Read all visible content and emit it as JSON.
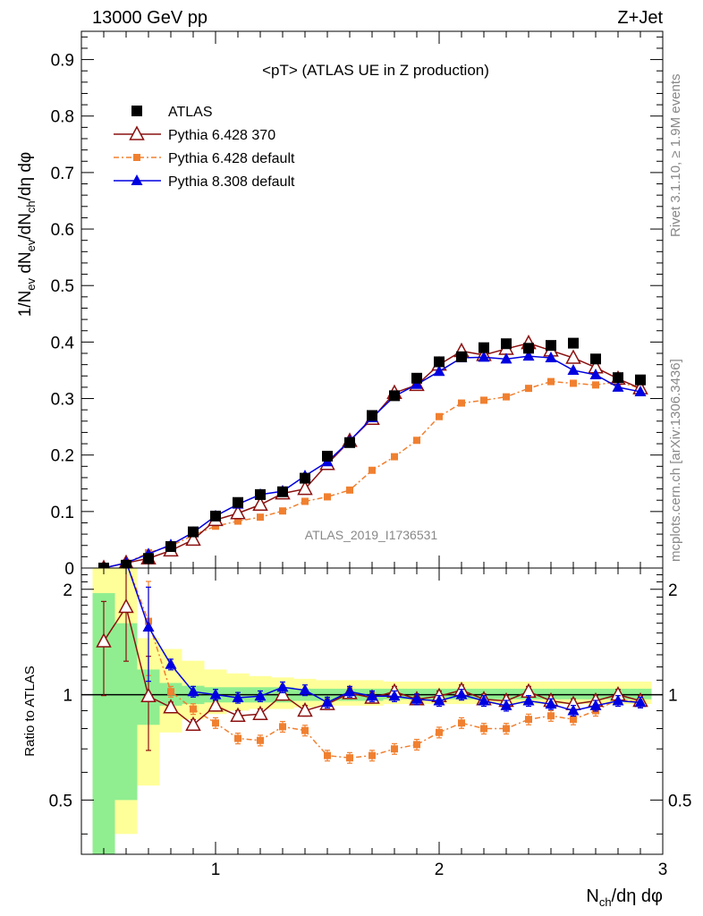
{
  "header": {
    "left": "13000 GeV pp",
    "right": "Z+Jet"
  },
  "plot_title": "<pT> (ATLAS UE in Z production)",
  "analysis_label": "ATLAS_2019_I1736531",
  "side_right_top": "Rivet 3.1.10, ≥ 1.9M events",
  "side_right_bottom": "mcplots.cern.ch [arXiv:1306.3436]",
  "colors": {
    "atlas": "#000000",
    "p6_370": "#8b1010",
    "p6_default": "#f08030",
    "p8_default": "#0000e0",
    "band_green": "#90ee90",
    "band_yellow": "#ffff99"
  },
  "chart_data": [
    {
      "type": "line",
      "title": "<pT> (ATLAS UE in Z production)",
      "ylabel": "1/N_ev dN_ev/dN_ch/dη dφ",
      "xlim": [
        0.4,
        3.0
      ],
      "ylim": [
        0,
        0.95
      ],
      "y_ticks": [
        "0",
        "0.1",
        "0.2",
        "0.3",
        "0.4",
        "0.5",
        "0.6",
        "0.7",
        "0.8",
        "0.9"
      ],
      "legend_position": "top-left",
      "series": [
        {
          "name": "ATLAS",
          "x": [
            0.5,
            0.6,
            0.7,
            0.8,
            0.9,
            1.0,
            1.1,
            1.2,
            1.3,
            1.4,
            1.5,
            1.6,
            1.7,
            1.8,
            1.9,
            2.0,
            2.1,
            2.2,
            2.3,
            2.4,
            2.5,
            2.6,
            2.7,
            2.8,
            2.9
          ],
          "y": [
            0.0,
            0.005,
            0.017,
            0.038,
            0.064,
            0.092,
            0.116,
            0.13,
            0.135,
            0.159,
            0.198,
            0.222,
            0.27,
            0.305,
            0.336,
            0.365,
            0.374,
            0.39,
            0.397,
            0.389,
            0.394,
            0.398,
            0.37,
            0.337,
            0.333
          ]
        },
        {
          "name": "Pythia 6.428 370",
          "x": [
            0.5,
            0.6,
            0.7,
            0.8,
            0.9,
            1.0,
            1.1,
            1.2,
            1.3,
            1.4,
            1.5,
            1.6,
            1.7,
            1.8,
            1.9,
            2.0,
            2.1,
            2.2,
            2.3,
            2.4,
            2.5,
            2.6,
            2.7,
            2.8,
            2.9
          ],
          "y": [
            0.0,
            0.009,
            0.017,
            0.031,
            0.05,
            0.085,
            0.097,
            0.112,
            0.132,
            0.14,
            0.184,
            0.225,
            0.264,
            0.31,
            0.324,
            0.36,
            0.384,
            0.377,
            0.388,
            0.398,
            0.385,
            0.372,
            0.355,
            0.335,
            0.318
          ]
        },
        {
          "name": "Pythia 6.428 default",
          "x": [
            0.5,
            0.6,
            0.7,
            0.8,
            0.9,
            1.0,
            1.1,
            1.2,
            1.3,
            1.4,
            1.5,
            1.6,
            1.7,
            1.8,
            1.9,
            2.0,
            2.1,
            2.2,
            2.3,
            2.4,
            2.5,
            2.6,
            2.7,
            2.8,
            2.9
          ],
          "y": [
            0.0,
            0.009,
            0.027,
            0.039,
            0.058,
            0.074,
            0.083,
            0.09,
            0.101,
            0.118,
            0.126,
            0.138,
            0.173,
            0.197,
            0.226,
            0.268,
            0.292,
            0.297,
            0.303,
            0.318,
            0.33,
            0.327,
            0.324,
            0.33,
            0.318
          ]
        },
        {
          "name": "Pythia 8.308 default",
          "x": [
            0.5,
            0.6,
            0.7,
            0.8,
            0.9,
            1.0,
            1.1,
            1.2,
            1.3,
            1.4,
            1.5,
            1.6,
            1.7,
            1.8,
            1.9,
            2.0,
            2.1,
            2.2,
            2.3,
            2.4,
            2.5,
            2.6,
            2.7,
            2.8,
            2.9
          ],
          "y": [
            0.0,
            0.009,
            0.025,
            0.041,
            0.063,
            0.092,
            0.113,
            0.13,
            0.136,
            0.163,
            0.188,
            0.225,
            0.266,
            0.304,
            0.325,
            0.348,
            0.372,
            0.373,
            0.37,
            0.375,
            0.372,
            0.35,
            0.342,
            0.32,
            0.312
          ]
        }
      ]
    },
    {
      "type": "line",
      "ylabel": "Ratio to ATLAS",
      "xlabel": "N_ch/dη dφ",
      "xlim": [
        0.4,
        3.0
      ],
      "ylim": [
        0.35,
        2.3
      ],
      "y_scale": "log",
      "x_ticks": [
        "1",
        "2",
        "3"
      ],
      "y_ticks": [
        "0.5",
        "1",
        "2"
      ],
      "series": [
        {
          "name": "Pythia 6.428 370",
          "x": [
            0.5,
            0.6,
            0.7,
            0.8,
            0.9,
            1.0,
            1.1,
            1.2,
            1.3,
            1.4,
            1.5,
            1.6,
            1.7,
            1.8,
            1.9,
            2.0,
            2.1,
            2.2,
            2.3,
            2.4,
            2.5,
            2.6,
            2.7,
            2.8,
            2.9
          ],
          "y": [
            1.42,
            1.78,
            0.99,
            0.92,
            0.82,
            0.93,
            0.87,
            0.88,
            1.0,
            0.9,
            0.94,
            1.01,
            0.98,
            1.02,
            0.97,
            0.99,
            1.03,
            0.97,
            0.96,
            1.02,
            0.96,
            0.94,
            0.96,
            1.0,
            0.96
          ]
        },
        {
          "name": "Pythia 6.428 default",
          "x": [
            0.5,
            0.6,
            0.7,
            0.8,
            0.9,
            1.0,
            1.1,
            1.2,
            1.3,
            1.4,
            1.5,
            1.6,
            1.7,
            1.8,
            1.9,
            2.0,
            2.1,
            2.2,
            2.3,
            2.4,
            2.5,
            2.6,
            2.7,
            2.8,
            2.9
          ],
          "y": [
            2.4,
            2.4,
            1.62,
            1.02,
            0.91,
            0.83,
            0.75,
            0.74,
            0.81,
            0.79,
            0.67,
            0.66,
            0.67,
            0.7,
            0.72,
            0.78,
            0.83,
            0.8,
            0.8,
            0.85,
            0.87,
            0.85,
            0.9,
            0.97,
            0.95
          ]
        },
        {
          "name": "Pythia 8.308 default",
          "x": [
            0.5,
            0.6,
            0.7,
            0.8,
            0.9,
            1.0,
            1.1,
            1.2,
            1.3,
            1.4,
            1.5,
            1.6,
            1.7,
            1.8,
            1.9,
            2.0,
            2.1,
            2.2,
            2.3,
            2.4,
            2.5,
            2.6,
            2.7,
            2.8,
            2.9
          ],
          "y": [
            2.4,
            2.4,
            1.56,
            1.22,
            1.02,
            1.0,
            0.98,
            0.99,
            1.05,
            1.03,
            0.95,
            1.02,
            0.99,
            0.99,
            0.97,
            0.96,
            1.0,
            0.96,
            0.93,
            0.96,
            0.94,
            0.9,
            0.93,
            0.96,
            0.95
          ]
        }
      ],
      "bands": {
        "x_edges": [
          0.45,
          0.55,
          0.65,
          0.75,
          0.85,
          0.95,
          1.05,
          1.15,
          1.25,
          1.35,
          1.45,
          1.55,
          1.65,
          1.75,
          1.85,
          1.95,
          2.05,
          2.15,
          2.25,
          2.35,
          2.45,
          2.55,
          2.65,
          2.75,
          2.85,
          2.95
        ],
        "green_low": [
          0.3,
          0.5,
          0.82,
          0.93,
          0.94,
          0.95,
          0.95,
          0.95,
          0.95,
          0.96,
          0.96,
          0.96,
          0.96,
          0.97,
          0.97,
          0.97,
          0.97,
          0.97,
          0.97,
          0.97,
          0.97,
          0.97,
          0.97,
          0.97,
          0.97
        ],
        "green_high": [
          1.95,
          1.6,
          1.18,
          1.08,
          1.06,
          1.05,
          1.05,
          1.05,
          1.05,
          1.04,
          1.04,
          1.04,
          1.04,
          1.04,
          1.04,
          1.04,
          1.04,
          1.04,
          1.04,
          1.04,
          1.04,
          1.04,
          1.04,
          1.04,
          1.04
        ],
        "yellow_low": [
          0.3,
          0.4,
          0.55,
          0.78,
          0.85,
          0.88,
          0.9,
          0.91,
          0.91,
          0.92,
          0.93,
          0.93,
          0.93,
          0.94,
          0.94,
          0.94,
          0.94,
          0.94,
          0.94,
          0.94,
          0.94,
          0.94,
          0.94,
          0.94,
          0.94
        ],
        "yellow_high": [
          2.4,
          2.4,
          1.45,
          1.35,
          1.25,
          1.18,
          1.15,
          1.13,
          1.12,
          1.11,
          1.1,
          1.1,
          1.1,
          1.09,
          1.09,
          1.09,
          1.09,
          1.09,
          1.09,
          1.09,
          1.09,
          1.09,
          1.09,
          1.09,
          1.09
        ]
      }
    }
  ]
}
